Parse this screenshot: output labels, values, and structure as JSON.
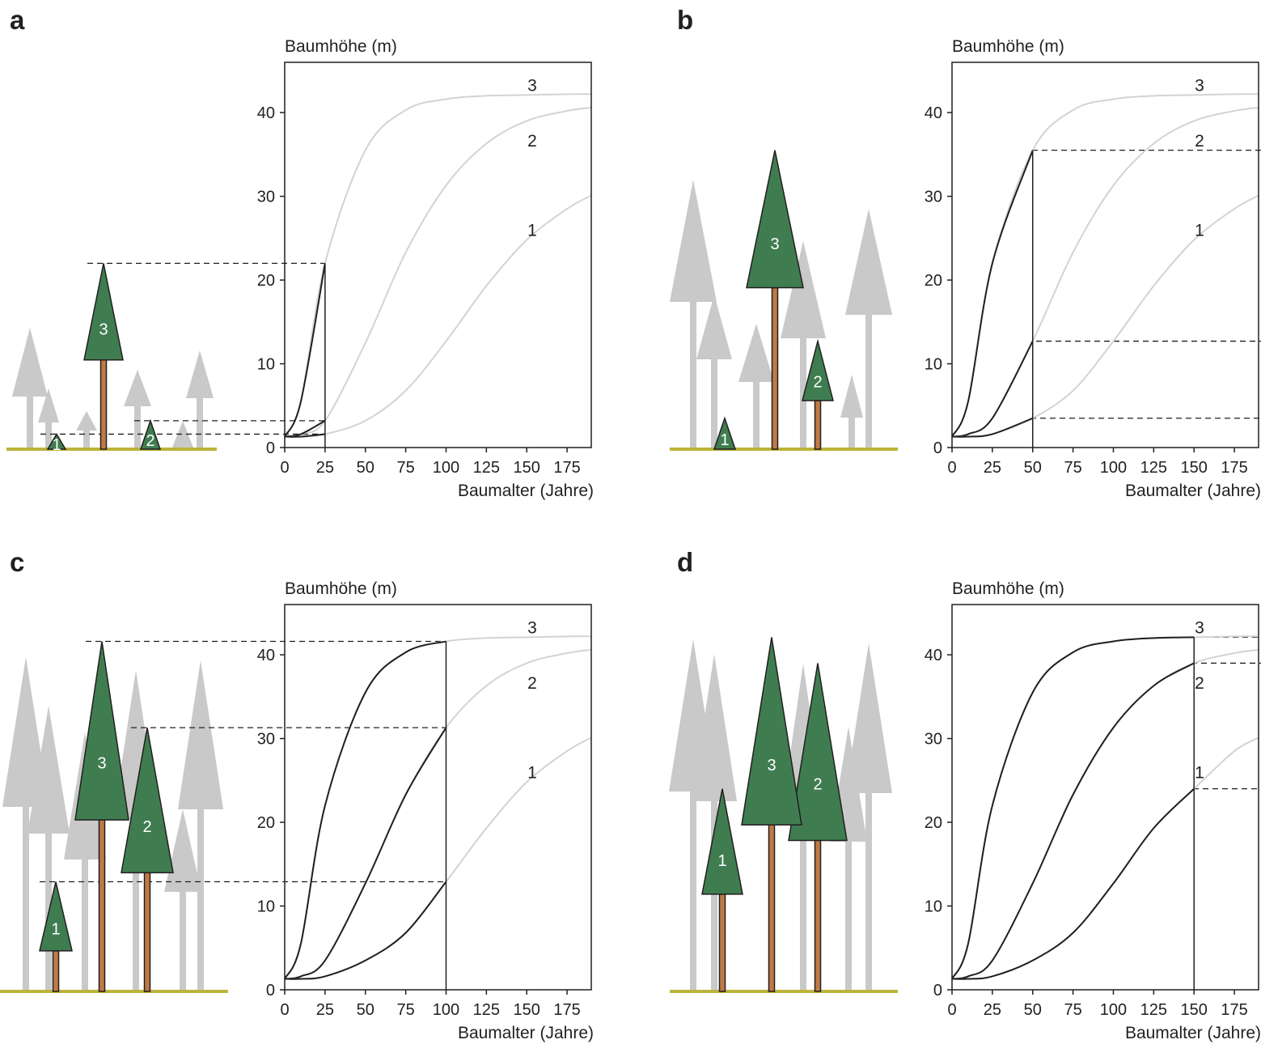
{
  "figure": {
    "ylabel": "Baumhöhe (m)",
    "xlabel": "Baumalter (Jahre)",
    "colors": {
      "tree_crown": "#3f7d50",
      "tree_trunk": "#c07a45",
      "background_tree": "#c9c9c9",
      "ground": "#bdb33a",
      "curve_inactive": "#d3d3d3",
      "curve_active": "#231f20"
    }
  },
  "chart_data": [
    {
      "panel": "a",
      "type": "line",
      "title": "a",
      "xlabel": "Baumalter (Jahre)",
      "ylabel": "Baumhöhe (m)",
      "xlim": [
        0,
        190
      ],
      "ylim": [
        0,
        46
      ],
      "xticks": [
        0,
        25,
        50,
        75,
        100,
        125,
        150,
        175
      ],
      "yticks": [
        0,
        10,
        20,
        30,
        40
      ],
      "current_age": 25,
      "series": [
        {
          "name": "1",
          "x": [
            0,
            10,
            25,
            50,
            75,
            100,
            125,
            150,
            175,
            190
          ],
          "values": [
            1.3,
            1.3,
            1.6,
            3.2,
            6.8,
            12.7,
            19.3,
            24.8,
            28.5,
            30.1
          ],
          "height_at_current_age": 1.6
        },
        {
          "name": "2",
          "x": [
            0,
            10,
            25,
            50,
            75,
            100,
            125,
            150,
            175,
            190
          ],
          "values": [
            1.3,
            1.6,
            3.2,
            12.5,
            23.3,
            31.3,
            36.3,
            39.0,
            40.2,
            40.6
          ],
          "height_at_current_age": 3.2
        },
        {
          "name": "3",
          "x": [
            0,
            10,
            25,
            50,
            75,
            100,
            125,
            150,
            175,
            190
          ],
          "values": [
            1.3,
            5.5,
            22.0,
            35.5,
            40.3,
            41.6,
            42.0,
            42.1,
            42.2,
            42.2
          ],
          "height_at_current_age": 22.0
        }
      ],
      "tree_labels": [
        "1",
        "2",
        "3"
      ]
    },
    {
      "panel": "b",
      "type": "line",
      "title": "b",
      "xlabel": "Baumalter (Jahre)",
      "ylabel": "Baumhöhe (m)",
      "xlim": [
        0,
        190
      ],
      "ylim": [
        0,
        46
      ],
      "xticks": [
        0,
        25,
        50,
        75,
        100,
        125,
        150,
        175
      ],
      "yticks": [
        0,
        10,
        20,
        30,
        40
      ],
      "current_age": 50,
      "series": [
        {
          "name": "1",
          "x": [
            0,
            10,
            25,
            50,
            75,
            100,
            125,
            150,
            175,
            190
          ],
          "values": [
            1.3,
            1.3,
            1.6,
            3.5,
            6.8,
            12.7,
            19.3,
            24.8,
            28.5,
            30.1
          ],
          "height_at_current_age": 3.5
        },
        {
          "name": "2",
          "x": [
            0,
            10,
            25,
            50,
            75,
            100,
            125,
            150,
            175,
            190
          ],
          "values": [
            1.3,
            1.6,
            3.5,
            12.7,
            23.3,
            31.3,
            36.3,
            39.0,
            40.2,
            40.6
          ],
          "height_at_current_age": 12.7
        },
        {
          "name": "3",
          "x": [
            0,
            10,
            25,
            50,
            75,
            100,
            125,
            150,
            175,
            190
          ],
          "values": [
            1.3,
            5.5,
            22.0,
            35.5,
            40.3,
            41.6,
            42.0,
            42.1,
            42.2,
            42.2
          ],
          "height_at_current_age": 35.5
        }
      ],
      "tree_labels": [
        "1",
        "2",
        "3"
      ]
    },
    {
      "panel": "c",
      "type": "line",
      "title": "c",
      "xlabel": "Baumalter (Jahre)",
      "ylabel": "Baumhöhe (m)",
      "xlim": [
        0,
        190
      ],
      "ylim": [
        0,
        46
      ],
      "xticks": [
        0,
        25,
        50,
        75,
        100,
        125,
        150,
        175
      ],
      "yticks": [
        0,
        10,
        20,
        30,
        40
      ],
      "current_age": 100,
      "series": [
        {
          "name": "1",
          "x": [
            0,
            10,
            25,
            50,
            75,
            100,
            125,
            150,
            175,
            190
          ],
          "values": [
            1.3,
            1.3,
            1.6,
            3.5,
            6.8,
            12.9,
            19.3,
            24.8,
            28.5,
            30.1
          ],
          "height_at_current_age": 12.9
        },
        {
          "name": "2",
          "x": [
            0,
            10,
            25,
            50,
            75,
            100,
            125,
            150,
            175,
            190
          ],
          "values": [
            1.3,
            1.6,
            3.5,
            12.7,
            23.3,
            31.3,
            36.3,
            39.0,
            40.2,
            40.6
          ],
          "height_at_current_age": 31.3
        },
        {
          "name": "3",
          "x": [
            0,
            10,
            25,
            50,
            75,
            100,
            125,
            150,
            175,
            190
          ],
          "values": [
            1.3,
            5.5,
            22.0,
            35.5,
            40.3,
            41.6,
            42.0,
            42.1,
            42.2,
            42.2
          ],
          "height_at_current_age": 41.6
        }
      ],
      "tree_labels": [
        "1",
        "2",
        "3"
      ]
    },
    {
      "panel": "d",
      "type": "line",
      "title": "d",
      "xlabel": "Baumalter (Jahre)",
      "ylabel": "Baumhöhe (m)",
      "xlim": [
        0,
        190
      ],
      "ylim": [
        0,
        46
      ],
      "xticks": [
        0,
        25,
        50,
        75,
        100,
        125,
        150,
        175
      ],
      "yticks": [
        0,
        10,
        20,
        30,
        40
      ],
      "current_age": 150,
      "series": [
        {
          "name": "1",
          "x": [
            0,
            10,
            25,
            50,
            75,
            100,
            125,
            150,
            175,
            190
          ],
          "values": [
            1.3,
            1.3,
            1.6,
            3.5,
            6.8,
            12.7,
            19.3,
            24.0,
            28.5,
            30.1
          ],
          "height_at_current_age": 24.0
        },
        {
          "name": "2",
          "x": [
            0,
            10,
            25,
            50,
            75,
            100,
            125,
            150,
            175,
            190
          ],
          "values": [
            1.3,
            1.6,
            3.5,
            12.7,
            23.3,
            31.3,
            36.3,
            39.0,
            40.2,
            40.6
          ],
          "height_at_current_age": 39.0
        },
        {
          "name": "3",
          "x": [
            0,
            10,
            25,
            50,
            75,
            100,
            125,
            150,
            175,
            190
          ],
          "values": [
            1.3,
            5.5,
            22.0,
            35.5,
            40.3,
            41.6,
            42.0,
            42.1,
            42.2,
            42.2
          ],
          "height_at_current_age": 42.1
        }
      ],
      "tree_labels": [
        "1",
        "2",
        "3"
      ]
    }
  ]
}
